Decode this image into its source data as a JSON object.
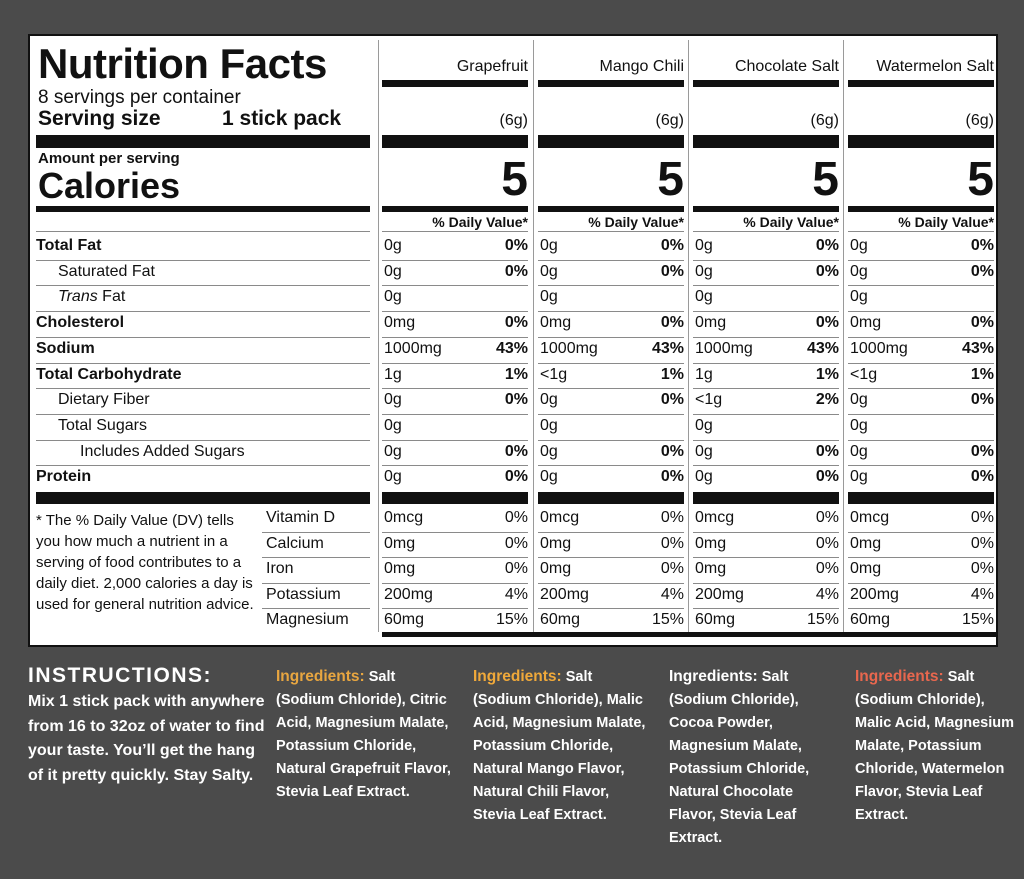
{
  "panel": {
    "title": "Nutrition Facts",
    "servings": "8 servings per container",
    "serving_size_label": "Serving size",
    "serving_size_value": "1 stick pack",
    "amount_per_serving": "Amount per serving",
    "calories_label": "Calories",
    "footnote": "* The % Daily Value (DV) tells you how much a nutrient in a serving of food contributes to a daily diet. 2,000 calories a day is used for general nutrition advice."
  },
  "flavors": [
    {
      "name": "Grapefruit",
      "grams": "(6g)",
      "calories": "5",
      "dv_header": "% Daily Value*"
    },
    {
      "name": "Mango Chili",
      "grams": "(6g)",
      "calories": "5",
      "dv_header": "% Daily Value*"
    },
    {
      "name": "Chocolate Salt",
      "grams": "(6g)",
      "calories": "5",
      "dv_header": "% Daily Value*"
    },
    {
      "name": "Watermelon Salt",
      "grams": "(6g)",
      "calories": "5",
      "dv_header": "% Daily Value*"
    }
  ],
  "nutrients": [
    {
      "label": "Total Fat",
      "vals": [
        [
          "0g",
          "0%"
        ],
        [
          "0g",
          "0%"
        ],
        [
          "0g",
          "0%"
        ],
        [
          "0g",
          "0%"
        ]
      ]
    },
    {
      "label": "Saturated Fat",
      "vals": [
        [
          "0g",
          "0%"
        ],
        [
          "0g",
          "0%"
        ],
        [
          "0g",
          "0%"
        ],
        [
          "0g",
          "0%"
        ]
      ]
    },
    {
      "label_italic": "Trans",
      "label": "Fat",
      "vals": [
        [
          "0g",
          ""
        ],
        [
          "0g",
          ""
        ],
        [
          "0g",
          ""
        ],
        [
          "0g",
          ""
        ]
      ]
    },
    {
      "label": "Cholesterol",
      "vals": [
        [
          "0mg",
          "0%"
        ],
        [
          "0mg",
          "0%"
        ],
        [
          "0mg",
          "0%"
        ],
        [
          "0mg",
          "0%"
        ]
      ]
    },
    {
      "label": "Sodium",
      "vals": [
        [
          "1000mg",
          "43%"
        ],
        [
          "1000mg",
          "43%"
        ],
        [
          "1000mg",
          "43%"
        ],
        [
          "1000mg",
          "43%"
        ]
      ]
    },
    {
      "label": "Total Carbohydrate",
      "vals": [
        [
          "1g",
          "1%"
        ],
        [
          "<1g",
          "1%"
        ],
        [
          "1g",
          "1%"
        ],
        [
          "<1g",
          "1%"
        ]
      ]
    },
    {
      "label": "Dietary Fiber",
      "vals": [
        [
          "0g",
          "0%"
        ],
        [
          "0g",
          "0%"
        ],
        [
          "<1g",
          "2%"
        ],
        [
          "0g",
          "0%"
        ]
      ]
    },
    {
      "label": "Total Sugars",
      "vals": [
        [
          "0g",
          ""
        ],
        [
          "0g",
          ""
        ],
        [
          "0g",
          ""
        ],
        [
          "0g",
          ""
        ]
      ]
    },
    {
      "label": "Includes Added Sugars",
      "vals": [
        [
          "0g",
          "0%"
        ],
        [
          "0g",
          "0%"
        ],
        [
          "0g",
          "0%"
        ],
        [
          "0g",
          "0%"
        ]
      ]
    },
    {
      "label": "Protein",
      "vals": [
        [
          "0g",
          "0%"
        ],
        [
          "0g",
          "0%"
        ],
        [
          "0g",
          "0%"
        ],
        [
          "0g",
          "0%"
        ]
      ]
    }
  ],
  "vitamins": [
    {
      "label": "Vitamin D",
      "vals": [
        [
          "0mcg",
          "0%"
        ],
        [
          "0mcg",
          "0%"
        ],
        [
          "0mcg",
          "0%"
        ],
        [
          "0mcg",
          "0%"
        ]
      ]
    },
    {
      "label": "Calcium",
      "vals": [
        [
          "0mg",
          "0%"
        ],
        [
          "0mg",
          "0%"
        ],
        [
          "0mg",
          "0%"
        ],
        [
          "0mg",
          "0%"
        ]
      ]
    },
    {
      "label": "Iron",
      "vals": [
        [
          "0mg",
          "0%"
        ],
        [
          "0mg",
          "0%"
        ],
        [
          "0mg",
          "0%"
        ],
        [
          "0mg",
          "0%"
        ]
      ]
    },
    {
      "label": "Potassium",
      "vals": [
        [
          "200mg",
          "4%"
        ],
        [
          "200mg",
          "4%"
        ],
        [
          "200mg",
          "4%"
        ],
        [
          "200mg",
          "4%"
        ]
      ]
    },
    {
      "label": "Magnesium",
      "vals": [
        [
          "60mg",
          "15%"
        ],
        [
          "60mg",
          "15%"
        ],
        [
          "60mg",
          "15%"
        ],
        [
          "60mg",
          "15%"
        ]
      ]
    }
  ],
  "instructions": {
    "title": "INSTRUCTIONS:",
    "body": "Mix 1 stick pack with anywhere from 16 to 32oz of water to find your taste. You’ll get the hang of it pretty quickly. Stay Salty."
  },
  "ingredients": [
    {
      "label": "Ingredients:",
      "color": "#e8a640",
      "text": "Salt (Sodium Chloride), Citric Acid, Magnesium Malate, Potassium Chloride, Natural Grapefruit Flavor, Stevia Leaf Extract."
    },
    {
      "label": "Ingredients:",
      "color": "#f0a93a",
      "text": "Salt (Sodium Chloride), Malic Acid, Magnesium Malate, Potassium Chloride, Natural Mango Flavor, Natural Chili Flavor, Stevia Leaf Extract."
    },
    {
      "label": "Ingredients:",
      "color": "#ffffff",
      "text": "Salt (Sodium Chloride), Cocoa Powder, Magnesium Malate, Potassium Chloride, Natural Chocolate Flavor, Stevia Leaf Extract."
    },
    {
      "label": "Ingredients:",
      "color": "#e8674e",
      "text": "Salt (Sodium Chloride), Malic Acid, Magnesium Malate, Potassium Chloride, Watermelon Flavor, Stevia Leaf Extract."
    }
  ]
}
